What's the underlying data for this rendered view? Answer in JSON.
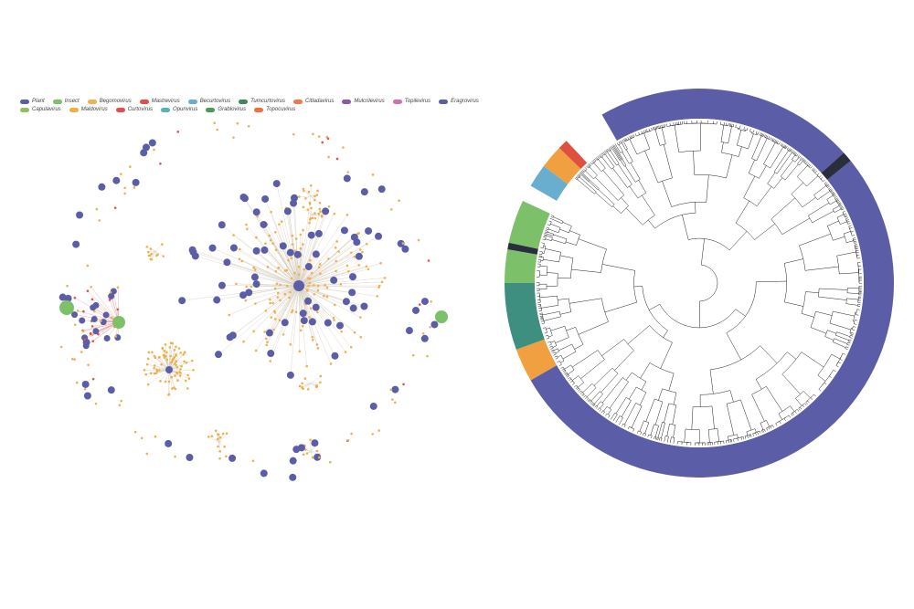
{
  "legend": [
    {
      "label": "Plant",
      "color": "#5b5ea6"
    },
    {
      "label": "Insect",
      "color": "#7cc06a"
    },
    {
      "label": "Begomovirus",
      "color": "#f0b050"
    },
    {
      "label": "Mastrevirus",
      "color": "#e0504a"
    },
    {
      "label": "Becurtovirus",
      "color": "#6aaecf"
    },
    {
      "label": "Turncurtovirus",
      "color": "#3e8a5a"
    },
    {
      "label": "Citladavirus",
      "color": "#f07850"
    },
    {
      "label": "Mulcrilevirus",
      "color": "#8a5aa6"
    },
    {
      "label": "Topilevirus",
      "color": "#d070b0"
    },
    {
      "label": "Eragrovirus",
      "color": "#5b5ea6"
    },
    {
      "label": "Capulavirus",
      "color": "#8cc060"
    },
    {
      "label": "Maldovirus",
      "color": "#f0b040"
    },
    {
      "label": "Curtovirus",
      "color": "#e05050"
    },
    {
      "label": "Opunvirus",
      "color": "#5ab0c0"
    },
    {
      "label": "Grablovirus",
      "color": "#4a9a58"
    },
    {
      "label": "Topocuvirus",
      "color": "#f07040"
    }
  ],
  "colors": {
    "plant": "#5b5ea6",
    "insect": "#7cc06a",
    "virus": "#f0b050",
    "edge": "#d8cfc0",
    "tree_line": "#222222",
    "ring_main": "#5b5ea6",
    "ring_teal": "#3f8f80",
    "ring_green": "#7cc06a",
    "ring_orange": "#f0a040",
    "ring_red": "#e05040",
    "ring_blue": "#6aaecf",
    "ring_dark": "#2a2d3a"
  }
}
